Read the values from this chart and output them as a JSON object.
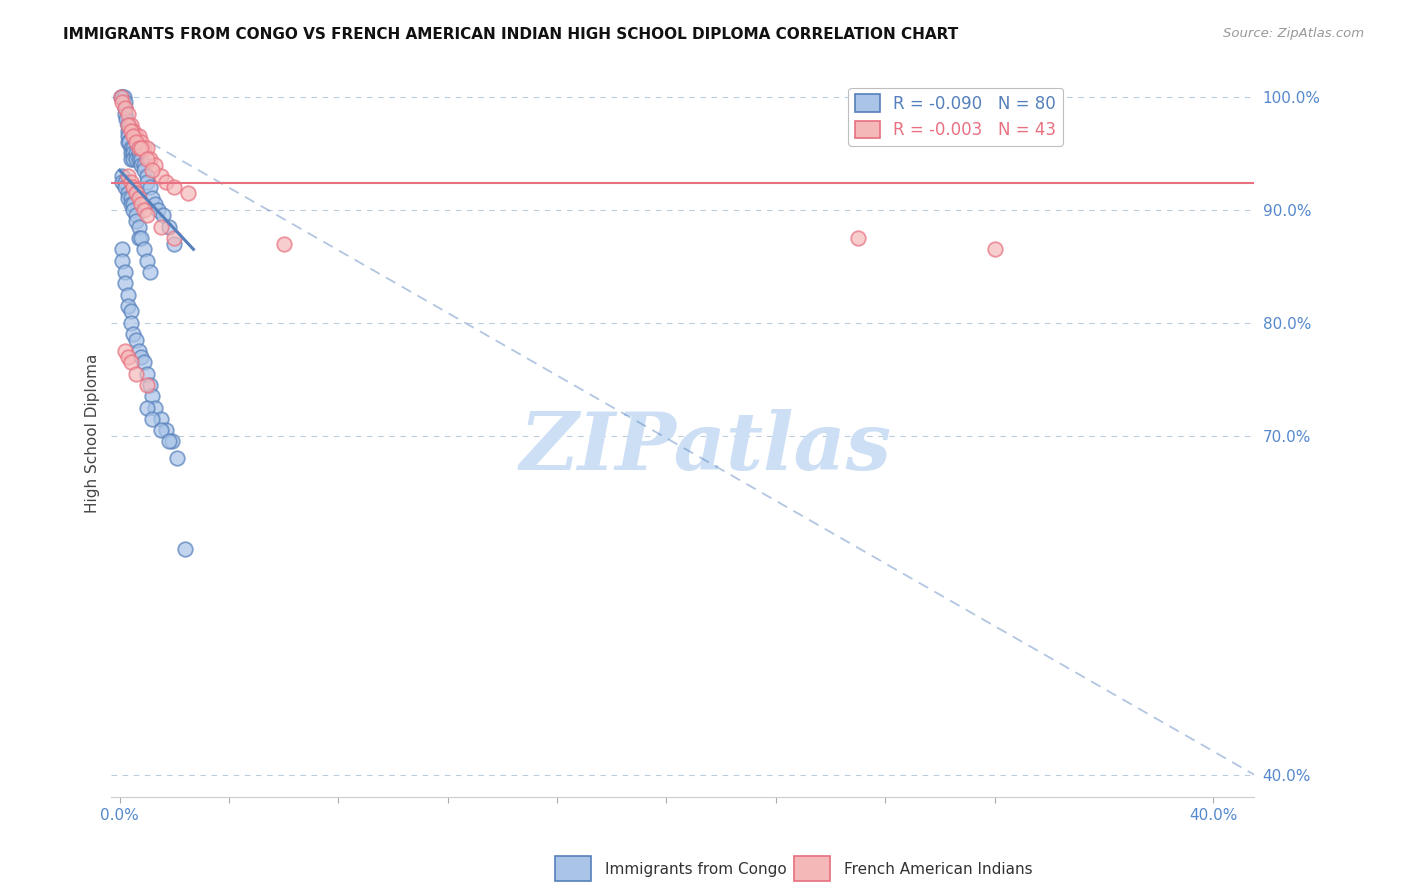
{
  "title": "IMMIGRANTS FROM CONGO VS FRENCH AMERICAN INDIAN HIGH SCHOOL DIPLOMA CORRELATION CHART",
  "source": "Source: ZipAtlas.com",
  "ylabel": "High School Diploma",
  "right_ytick_labels": [
    "100.0%",
    "90.0%",
    "80.0%",
    "70.0%",
    "40.0%"
  ],
  "right_ytick_values": [
    1.0,
    0.9,
    0.8,
    0.7,
    0.4
  ],
  "xtick_labels": [
    "0.0%",
    "",
    "",
    "",
    "",
    "",
    "",
    "",
    "",
    "40.0%"
  ],
  "xtick_values": [
    0.0,
    0.04,
    0.08,
    0.12,
    0.16,
    0.2,
    0.24,
    0.28,
    0.32,
    0.4
  ],
  "xlim": [
    -0.003,
    0.415
  ],
  "ylim": [
    0.38,
    1.025
  ],
  "legend_entries": [
    {
      "label": "R = -0.090   N = 80",
      "color": "#6699cc"
    },
    {
      "label": "R = -0.003   N = 43",
      "color": "#e87a7a"
    }
  ],
  "congo_x": [
    0.0005,
    0.001,
    0.001,
    0.0015,
    0.002,
    0.002,
    0.002,
    0.0025,
    0.003,
    0.003,
    0.003,
    0.003,
    0.0035,
    0.004,
    0.004,
    0.004,
    0.005,
    0.005,
    0.005,
    0.006,
    0.006,
    0.007,
    0.007,
    0.008,
    0.008,
    0.009,
    0.009,
    0.01,
    0.01,
    0.011,
    0.012,
    0.013,
    0.014,
    0.016,
    0.018,
    0.02,
    0.001,
    0.001,
    0.002,
    0.002,
    0.003,
    0.003,
    0.004,
    0.004,
    0.005,
    0.005,
    0.006,
    0.006,
    0.007,
    0.007,
    0.008,
    0.009,
    0.01,
    0.011,
    0.001,
    0.001,
    0.002,
    0.002,
    0.003,
    0.003,
    0.004,
    0.004,
    0.005,
    0.006,
    0.007,
    0.008,
    0.009,
    0.01,
    0.011,
    0.012,
    0.013,
    0.015,
    0.017,
    0.019,
    0.01,
    0.012,
    0.015,
    0.018,
    0.021,
    0.024
  ],
  "congo_y": [
    1.0,
    1.0,
    1.0,
    1.0,
    0.995,
    0.99,
    0.985,
    0.98,
    0.975,
    0.97,
    0.965,
    0.96,
    0.96,
    0.955,
    0.95,
    0.945,
    0.955,
    0.95,
    0.945,
    0.95,
    0.945,
    0.95,
    0.945,
    0.945,
    0.94,
    0.94,
    0.935,
    0.93,
    0.925,
    0.92,
    0.91,
    0.905,
    0.9,
    0.895,
    0.885,
    0.87,
    0.93,
    0.925,
    0.925,
    0.92,
    0.915,
    0.91,
    0.91,
    0.905,
    0.905,
    0.9,
    0.895,
    0.89,
    0.885,
    0.875,
    0.875,
    0.865,
    0.855,
    0.845,
    0.865,
    0.855,
    0.845,
    0.835,
    0.825,
    0.815,
    0.81,
    0.8,
    0.79,
    0.785,
    0.775,
    0.77,
    0.765,
    0.755,
    0.745,
    0.735,
    0.725,
    0.715,
    0.705,
    0.695,
    0.725,
    0.715,
    0.705,
    0.695,
    0.68,
    0.6
  ],
  "french_x": [
    0.0005,
    0.001,
    0.002,
    0.003,
    0.004,
    0.005,
    0.006,
    0.007,
    0.008,
    0.009,
    0.01,
    0.011,
    0.013,
    0.015,
    0.017,
    0.02,
    0.025,
    0.003,
    0.004,
    0.005,
    0.006,
    0.007,
    0.008,
    0.01,
    0.012,
    0.003,
    0.004,
    0.005,
    0.006,
    0.007,
    0.008,
    0.009,
    0.01,
    0.015,
    0.02,
    0.06,
    0.27,
    0.32,
    0.002,
    0.003,
    0.004,
    0.006,
    0.01
  ],
  "french_y": [
    1.0,
    0.995,
    0.99,
    0.985,
    0.975,
    0.97,
    0.965,
    0.965,
    0.96,
    0.955,
    0.955,
    0.945,
    0.94,
    0.93,
    0.925,
    0.92,
    0.915,
    0.975,
    0.97,
    0.965,
    0.96,
    0.955,
    0.955,
    0.945,
    0.935,
    0.93,
    0.925,
    0.92,
    0.915,
    0.91,
    0.905,
    0.9,
    0.895,
    0.885,
    0.875,
    0.87,
    0.875,
    0.865,
    0.775,
    0.77,
    0.765,
    0.755,
    0.745
  ],
  "blue_color": "#5580bb",
  "pink_color": "#e87080",
  "blue_scatter_fill": "#aac4e8",
  "pink_scatter_fill": "#f4b8b8",
  "trend_blue_solid_x0": 0.0,
  "trend_blue_solid_x1": 0.027,
  "trend_blue_solid_y0": 0.935,
  "trend_blue_solid_y1": 0.865,
  "trend_pink_solid_y": 0.924,
  "trend_blue_dashed_x0": 0.0,
  "trend_blue_dashed_x1": 0.415,
  "trend_blue_dashed_y0": 0.975,
  "trend_blue_dashed_y1": 0.4,
  "watermark_text": "ZIPatlas",
  "watermark_color": "#ccdff5",
  "background_color": "#ffffff",
  "grid_color": "#bbccdd",
  "bottom_legend_blue_label": "Immigrants from Congo",
  "bottom_legend_pink_label": "French American Indians"
}
